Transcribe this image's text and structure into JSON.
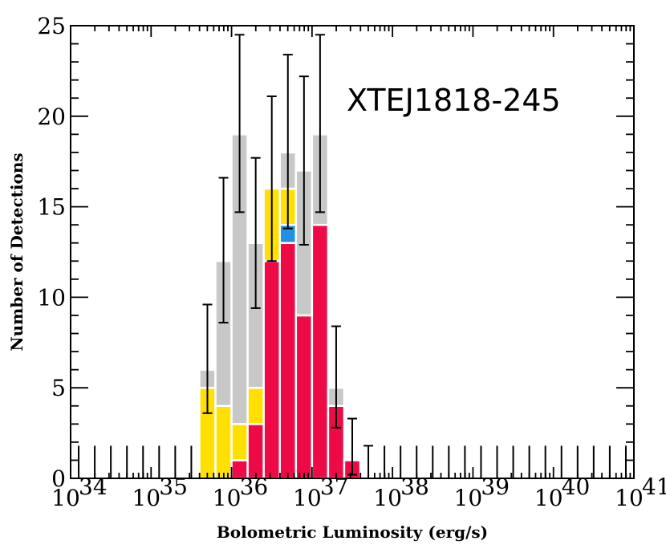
{
  "chart_data": {
    "type": "bar",
    "title": "",
    "annotation": "XTEJ1818-245",
    "xlabel": "Bolometric Luminosity (erg/s)",
    "ylabel": "Number of Detections",
    "x_scale": "log10",
    "xlim": [
      34,
      41
    ],
    "ylim": [
      0,
      25
    ],
    "x_ticks": [
      34,
      35,
      36,
      37,
      38,
      39,
      40,
      41
    ],
    "x_tick_labels": [
      {
        "base": "10",
        "exp": "34"
      },
      {
        "base": "10",
        "exp": "35"
      },
      {
        "base": "10",
        "exp": "36"
      },
      {
        "base": "10",
        "exp": "37"
      },
      {
        "base": "10",
        "exp": "38"
      },
      {
        "base": "10",
        "exp": "39"
      },
      {
        "base": "10",
        "exp": "40"
      },
      {
        "base": "10",
        "exp": "41"
      }
    ],
    "y_ticks": [
      0,
      5,
      10,
      15,
      20,
      25
    ],
    "y_tick_labels": [
      "0",
      "5",
      "10",
      "15",
      "20",
      "25"
    ],
    "bin_width_dex": 0.2,
    "bin_left_edges_log": [
      35.6,
      35.8,
      36.0,
      36.2,
      36.4,
      36.6,
      36.8,
      37.0,
      37.2,
      37.4,
      37.6
    ],
    "series": [
      {
        "color": "#ee0a47",
        "values": [
          0,
          0,
          1,
          3,
          12,
          13,
          9,
          14,
          4,
          1,
          0
        ]
      },
      {
        "color": "#1e90e6",
        "values": [
          0,
          0,
          0,
          0,
          0,
          1,
          0,
          0,
          0,
          0,
          0
        ]
      },
      {
        "color": "#ffe000",
        "values": [
          5,
          4,
          2,
          2,
          4,
          2,
          0,
          0,
          0,
          0,
          0
        ]
      },
      {
        "color": "#c8c8c8",
        "values": [
          1,
          8,
          16,
          8,
          0,
          2,
          8,
          5,
          1,
          0,
          0
        ]
      }
    ],
    "error_bars": {
      "bin_centers_log": [
        35.7,
        35.9,
        36.1,
        36.3,
        36.5,
        36.7,
        36.9,
        37.1,
        37.3,
        37.5,
        37.7
      ],
      "totals": [
        6,
        12,
        19,
        13,
        16,
        18,
        17,
        19,
        5,
        1,
        0
      ],
      "upper_errors": [
        3.6,
        4.6,
        5.5,
        4.7,
        5.1,
        5.4,
        5.2,
        5.5,
        3.4,
        2.3,
        1.8
      ],
      "lower_errors": [
        2.4,
        3.4,
        4.3,
        3.6,
        4.0,
        4.2,
        4.1,
        4.3,
        2.2,
        0.8,
        0
      ],
      "empty_bin_centers_log": [
        34.1,
        34.3,
        34.5,
        34.7,
        34.9,
        35.1,
        35.3,
        35.5,
        37.9,
        38.1,
        38.3,
        38.5,
        38.7,
        38.9,
        39.1,
        39.3,
        39.5,
        39.7,
        39.9,
        40.1,
        40.3,
        40.5,
        40.7,
        40.9
      ],
      "empty_upper": 1.8
    },
    "grid": false,
    "legend": "none"
  }
}
